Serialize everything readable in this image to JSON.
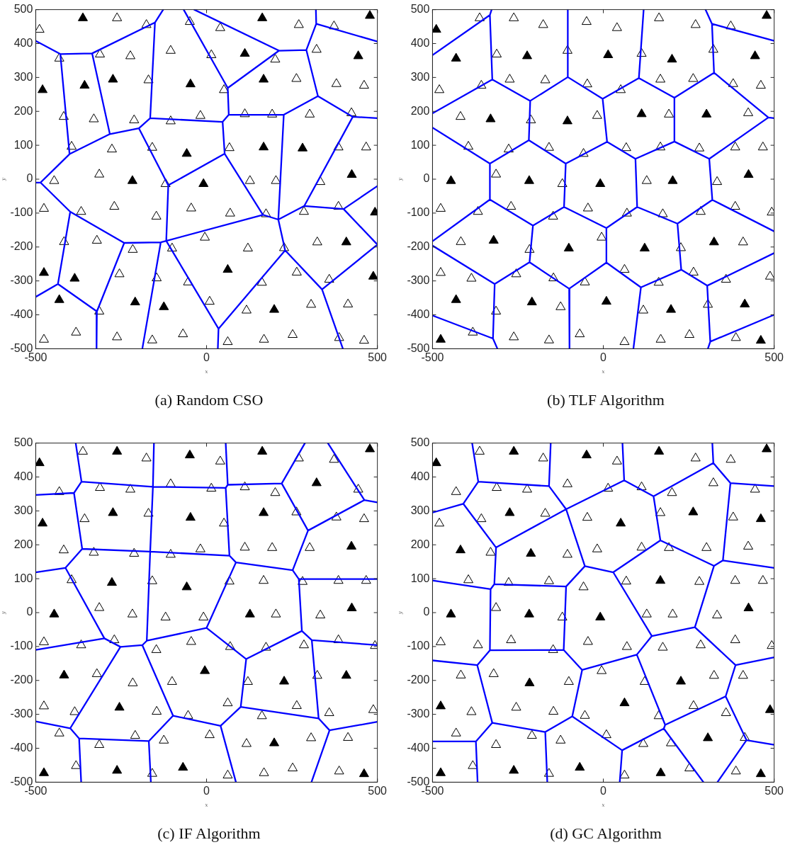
{
  "chart_data": [
    {
      "type": "scatter",
      "title": "(a) Random CSO",
      "xlabel": "x",
      "ylabel": "y",
      "xlim": [
        -500,
        500
      ],
      "ylim": [
        -500,
        500
      ],
      "xticks": [
        -500,
        0,
        500
      ],
      "yticks": [
        -500,
        -400,
        -300,
        -200,
        -100,
        0,
        100,
        200,
        300,
        400,
        500
      ],
      "marker": "triangle",
      "series": [
        {
          "type": "scatter",
          "color": "#ffffff",
          "x": [
            -262,
            -489,
            -176,
            -49,
            40,
            270,
            373,
            -431,
            -312,
            -223,
            -105,
            14,
            201,
            322,
            -170,
            51,
            263,
            380,
            461,
            -418,
            -330,
            -212,
            -105,
            -18,
            112,
            192,
            302,
            424,
            -395,
            -277,
            -159,
            67,
            386,
            467,
            -446,
            -314,
            -120,
            127,
            203,
            333,
            -476,
            -367,
            -270,
            -147,
            -45,
            69,
            174,
            285,
            386,
            -417,
            -321,
            -216,
            -101,
            -5,
            121,
            227,
            324,
            -255,
            -146,
            -54,
            162,
            264,
            359,
            -314,
            9,
            117,
            306,
            414,
            -476,
            -382,
            -262,
            -159,
            -69,
            62,
            168,
            252,
            388,
            461
          ],
          "values": [
            475,
            441,
            455,
            464,
            446,
            455,
            451,
            356,
            368,
            363,
            379,
            366,
            353,
            382,
            292,
            263,
            296,
            281,
            276,
            184,
            177,
            174,
            171,
            187,
            192,
            191,
            191,
            195,
            96,
            88,
            93,
            92,
            94,
            94,
            -5,
            14,
            -14,
            -5,
            -5,
            -8,
            -87,
            -96,
            -81,
            -110,
            -86,
            -101,
            -103,
            -96,
            -81,
            -185,
            -181,
            -208,
            -204,
            -172,
            -204,
            -203,
            -186,
            -280,
            -292,
            -304,
            -305,
            -275,
            -296,
            -390,
            -361,
            -387,
            -370,
            -369,
            -473,
            -452,
            -466,
            -475,
            -457,
            -480,
            -473,
            -459,
            -468,
            -476
          ]
        },
        {
          "type": "scatter",
          "color": "#000000",
          "x": [
            -362,
            163,
            478,
            112,
            444,
            -480,
            -357,
            -274,
            -47,
            167,
            -58,
            167,
            281,
            -217,
            -9,
            425,
            493,
            409,
            -476,
            -386,
            62,
            488,
            -431,
            -209,
            -125,
            198
          ],
          "values": [
            475,
            475,
            482,
            370,
            363,
            263,
            276,
            294,
            280,
            294,
            75,
            94,
            91,
            -5,
            -14,
            13,
            -98,
            -186,
            -276,
            -293,
            -267,
            -287,
            -356,
            -363,
            -377,
            -385
          ]
        },
        {
          "type": "line",
          "color": "#0000ff",
          "marker": "none",
          "x": [
            -500,
            -428,
            -335,
            -151,
            -127,
            null,
            -428,
            -401,
            null,
            -335,
            -283,
            null,
            -401,
            -283,
            -198,
            -165,
            47,
            65,
            226,
            326,
            428,
            500,
            null,
            -151,
            -165,
            null,
            -67,
            62,
            65,
            null,
            -36,
            212,
            292,
            321,
            320,
            null,
            321,
            500,
            null,
            212,
            62,
            null,
            292,
            326,
            null,
            -500,
            -486,
            -401,
            null,
            -486,
            -399,
            -241,
            -134,
            -118,
            165,
            210,
            286,
            401,
            500,
            null,
            226,
            210,
            null,
            -198,
            -112,
            53,
            165,
            null,
            -112,
            -118,
            null,
            53,
            47,
            null,
            428,
            286,
            null,
            401,
            500,
            null,
            210,
            230,
            338,
            399,
            null,
            230,
            35,
            33,
            null,
            338,
            500,
            null,
            -118,
            35,
            null,
            -134,
            -188,
            null,
            -241,
            -321,
            -322,
            null,
            -399,
            -435,
            -500,
            null,
            -435,
            -321
          ],
          "values": [
            408,
            369,
            371,
            462,
            500,
            null,
            369,
            74,
            null,
            371,
            133,
            null,
            74,
            133,
            150,
            180,
            169,
            190,
            190,
            245,
            184,
            180,
            null,
            462,
            180,
            null,
            500,
            269,
            190,
            null,
            500,
            379,
            381,
            458,
            500,
            null,
            458,
            406,
            null,
            379,
            269,
            null,
            381,
            245,
            null,
            -10,
            -10,
            74,
            null,
            -10,
            -96,
            -188,
            -186,
            -182,
            -105,
            -119,
            -79,
            -88,
            -20,
            null,
            190,
            -119,
            null,
            150,
            -18,
            75,
            -105,
            null,
            -18,
            -182,
            null,
            75,
            169,
            null,
            184,
            -79,
            null,
            -88,
            -193,
            null,
            -119,
            -210,
            -325,
            -500,
            null,
            -210,
            -441,
            -500,
            null,
            -325,
            -193,
            null,
            -182,
            -441,
            null,
            -186,
            -500,
            null,
            -188,
            -390,
            -500,
            null,
            -96,
            -309,
            -347,
            null,
            -309,
            -390
          ]
        }
      ]
    },
    {
      "type": "scatter",
      "title": "(b) TLF Algorithm",
      "xlabel": "x",
      "ylabel": "y",
      "xlim": [
        -500,
        500
      ],
      "ylim": [
        -500,
        500
      ],
      "xticks": [
        -500,
        0,
        500
      ],
      "yticks": [
        -500,
        -400,
        -300,
        -200,
        -100,
        0,
        100,
        200,
        300,
        400,
        500
      ],
      "marker": "triangle",
      "series": [
        {
          "type": "scatter",
          "color": "#ffffff",
          "x": [
            -362,
            -262,
            -176,
            -49,
            40,
            163,
            270,
            373,
            -312,
            -105,
            112,
            322,
            -480,
            -357,
            -274,
            -170,
            -47,
            51,
            167,
            263,
            380,
            461,
            -418,
            -212,
            -18,
            192,
            424,
            -395,
            -277,
            -159,
            -58,
            67,
            167,
            281,
            386,
            467,
            -314,
            -120,
            127,
            333,
            -476,
            -367,
            -270,
            -147,
            -45,
            69,
            174,
            285,
            386,
            493,
            -417,
            -216,
            -5,
            227,
            409,
            -476,
            -386,
            -255,
            -146,
            -54,
            62,
            162,
            264,
            359,
            488,
            -314,
            -125,
            117,
            306,
            -382,
            -262,
            -159,
            -69,
            62,
            168,
            252,
            388
          ],
          "values": [
            475,
            475,
            455,
            464,
            446,
            475,
            455,
            451,
            368,
            379,
            370,
            382,
            263,
            276,
            294,
            292,
            280,
            263,
            294,
            296,
            281,
            276,
            184,
            174,
            187,
            191,
            195,
            96,
            88,
            93,
            75,
            92,
            94,
            91,
            94,
            94,
            14,
            -14,
            -5,
            -8,
            -87,
            -96,
            -81,
            -110,
            -86,
            -101,
            -103,
            -96,
            -81,
            -98,
            -185,
            -208,
            -172,
            -203,
            -186,
            -276,
            -293,
            -280,
            -292,
            -304,
            -267,
            -305,
            -275,
            -296,
            -287,
            -390,
            -377,
            -387,
            -370,
            -452,
            -466,
            -475,
            -457,
            -480,
            -473,
            -459,
            -468
          ]
        },
        {
          "type": "scatter",
          "color": "#000000",
          "x": [
            -489,
            478,
            -431,
            -223,
            14,
            201,
            444,
            -330,
            -105,
            112,
            302,
            -446,
            -217,
            -9,
            203,
            425,
            -321,
            -101,
            121,
            324,
            -431,
            -209,
            9,
            198,
            414,
            -476,
            461
          ],
          "values": [
            441,
            482,
            356,
            363,
            366,
            353,
            363,
            177,
            171,
            192,
            191,
            -5,
            -5,
            -14,
            -5,
            13,
            -181,
            -204,
            -204,
            -186,
            -356,
            -363,
            -361,
            -385,
            -369,
            -473,
            -476
          ]
        },
        {
          "type": "line",
          "color": "#0000ff",
          "marker": "none",
          "x": [
            -500,
            -332,
            -327,
            null,
            -332,
            -325,
            null,
            -500,
            -325,
            -214,
            -104,
            -2,
            104,
            208,
            324,
            483,
            500,
            null,
            -104,
            -104,
            null,
            104,
            118,
            null,
            324,
            318,
            299,
            null,
            318,
            500,
            null,
            -214,
            -218,
            null,
            -2,
            11,
            null,
            208,
            208,
            null,
            -500,
            -332,
            -218,
            -110,
            11,
            94,
            208,
            310,
            483,
            null,
            -332,
            -332,
            null,
            -110,
            -115,
            null,
            94,
            99,
            null,
            310,
            319,
            null,
            -500,
            -332,
            -206,
            -115,
            9,
            99,
            217,
            319,
            500,
            null,
            -500,
            -318,
            -216,
            -100,
            9,
            110,
            228,
            304,
            500,
            null,
            -206,
            -216,
            null,
            9,
            9,
            null,
            217,
            228,
            null,
            -318,
            -323,
            -310,
            null,
            -500,
            -323,
            null,
            -100,
            -99,
            null,
            110,
            88,
            null,
            304,
            313,
            306,
            null,
            313,
            500
          ],
          "values": [
            366,
            484,
            500,
            null,
            484,
            294,
            null,
            194,
            294,
            231,
            301,
            237,
            298,
            240,
            314,
            182,
            180,
            null,
            301,
            500,
            null,
            298,
            500,
            null,
            314,
            458,
            500,
            null,
            458,
            408,
            null,
            231,
            115,
            null,
            237,
            110,
            null,
            240,
            111,
            null,
            152,
            46,
            115,
            46,
            110,
            60,
            111,
            60,
            182,
            null,
            46,
            -60,
            null,
            46,
            -82,
            null,
            60,
            -82,
            null,
            60,
            -61,
            null,
            -183,
            -60,
            -137,
            -82,
            -144,
            -82,
            -131,
            -61,
            -154,
            null,
            -196,
            -309,
            -245,
            -323,
            -246,
            -319,
            -267,
            -314,
            -218,
            null,
            -137,
            -245,
            null,
            -144,
            -246,
            null,
            -131,
            -267,
            null,
            -309,
            -470,
            -500,
            null,
            -402,
            -470,
            null,
            -323,
            -500,
            null,
            -319,
            -500,
            null,
            -314,
            -479,
            -500,
            null,
            -479,
            -400
          ]
        }
      ]
    },
    {
      "type": "scatter",
      "title": "(c) IF Algorithm",
      "xlabel": "x",
      "ylabel": "y",
      "xlim": [
        -500,
        500
      ],
      "ylim": [
        -500,
        500
      ],
      "xticks": [
        -500,
        0,
        500
      ],
      "yticks": [
        -500,
        -400,
        -300,
        -200,
        -100,
        0,
        100,
        200,
        300,
        400,
        500
      ],
      "marker": "triangle",
      "series": [
        {
          "type": "scatter",
          "color": "#ffffff",
          "x": [
            -362,
            -176,
            40,
            270,
            373,
            -431,
            -312,
            -223,
            -105,
            14,
            112,
            201,
            444,
            -357,
            -170,
            51,
            263,
            380,
            461,
            -418,
            -330,
            -212,
            -105,
            -18,
            112,
            192,
            302,
            -395,
            -159,
            67,
            167,
            281,
            386,
            467,
            -314,
            -217,
            -120,
            -9,
            203,
            333,
            -476,
            -367,
            -270,
            -147,
            -45,
            69,
            174,
            285,
            386,
            493,
            -321,
            -216,
            -101,
            121,
            324,
            -476,
            -386,
            -146,
            -54,
            62,
            162,
            264,
            359,
            488,
            -431,
            -314,
            -209,
            -125,
            9,
            117,
            306,
            414,
            -382,
            -159,
            62,
            168,
            252,
            388
          ],
          "values": [
            475,
            455,
            446,
            455,
            451,
            356,
            368,
            363,
            379,
            366,
            370,
            353,
            363,
            276,
            292,
            263,
            296,
            281,
            276,
            184,
            177,
            174,
            171,
            187,
            192,
            191,
            191,
            96,
            93,
            92,
            94,
            91,
            94,
            94,
            14,
            -5,
            -14,
            -14,
            -5,
            -8,
            -87,
            -96,
            -81,
            -110,
            -86,
            -101,
            -103,
            -96,
            -81,
            -98,
            -181,
            -208,
            -204,
            -204,
            -186,
            -276,
            -293,
            -292,
            -304,
            -267,
            -305,
            -275,
            -296,
            -287,
            -356,
            -390,
            -363,
            -377,
            -361,
            -387,
            -370,
            -369,
            -452,
            -475,
            -480,
            -473,
            -459,
            -468
          ]
        },
        {
          "type": "scatter",
          "color": "#000000",
          "x": [
            -262,
            -489,
            -49,
            163,
            478,
            322,
            -480,
            -274,
            -47,
            167,
            424,
            -277,
            -58,
            -446,
            127,
            425,
            -417,
            -5,
            227,
            409,
            -255,
            198,
            -476,
            -262,
            -69,
            461
          ],
          "values": [
            475,
            441,
            464,
            475,
            482,
            382,
            263,
            294,
            280,
            294,
            195,
            88,
            75,
            -5,
            -5,
            13,
            -185,
            -172,
            -203,
            -186,
            -280,
            -385,
            -473,
            -466,
            -457,
            -476
          ]
        },
        {
          "type": "line",
          "color": "#0000ff",
          "marker": "none",
          "x": [
            -500,
            -388,
            -366,
            -157,
            56,
            62,
            220,
            297,
            462,
            500,
            null,
            -383,
            -366,
            null,
            -154,
            -157,
            null,
            56,
            62,
            null,
            288,
            220,
            null,
            355,
            462,
            null,
            -388,
            -364,
            null,
            -157,
            -165,
            null,
            56,
            67,
            null,
            297,
            252,
            null,
            -500,
            -413,
            -364,
            -165,
            67,
            86,
            252,
            270,
            500,
            null,
            -413,
            -299,
            -252,
            null,
            -500,
            -299,
            null,
            -252,
            -188,
            -175,
            0,
            116,
            279,
            308,
            500,
            null,
            -165,
            -175,
            null,
            86,
            0,
            null,
            270,
            279,
            null,
            -252,
            -399,
            null,
            -188,
            -98,
            null,
            116,
            100,
            null,
            308,
            328,
            null,
            -500,
            -399,
            -373,
            -169,
            -98,
            41,
            100,
            328,
            360,
            500,
            null,
            -373,
            -367,
            null,
            -169,
            -163,
            null,
            41,
            86,
            null,
            360,
            307
          ],
          "values": [
            347,
            353,
            386,
            371,
            368,
            377,
            381,
            242,
            332,
            325,
            null,
            500,
            386,
            null,
            500,
            371,
            null,
            500,
            377,
            null,
            500,
            381,
            null,
            500,
            332,
            null,
            353,
            188,
            null,
            371,
            180,
            null,
            368,
            168,
            null,
            242,
            125,
            null,
            119,
            132,
            188,
            180,
            168,
            148,
            125,
            99,
            99,
            null,
            132,
            -76,
            -101,
            null,
            -110,
            -76,
            null,
            -101,
            -96,
            -83,
            -45,
            -137,
            -54,
            -81,
            -96,
            null,
            180,
            -83,
            null,
            148,
            -45,
            null,
            99,
            -54,
            null,
            -101,
            -341,
            null,
            -96,
            -304,
            null,
            -137,
            -278,
            null,
            -81,
            -312,
            null,
            -321,
            -341,
            -371,
            -379,
            -304,
            -334,
            -278,
            -312,
            -347,
            -322,
            null,
            -371,
            -500,
            null,
            -379,
            -500,
            null,
            -334,
            -500,
            null,
            -347,
            -500
          ]
        }
      ]
    },
    {
      "type": "scatter",
      "title": "(d) GC Algorithm",
      "xlabel": "x",
      "ylabel": "y",
      "xlim": [
        -500,
        500
      ],
      "ylim": [
        -500,
        500
      ],
      "xticks": [
        -500,
        0,
        500
      ],
      "yticks": [
        -500,
        -400,
        -300,
        -200,
        -100,
        0,
        100,
        200,
        300,
        400,
        500
      ],
      "marker": "triangle",
      "series": [
        {
          "type": "scatter",
          "color": "#ffffff",
          "x": [
            -362,
            -176,
            40,
            270,
            373,
            -431,
            -312,
            -223,
            -105,
            14,
            112,
            201,
            322,
            444,
            -480,
            -357,
            -170,
            -47,
            167,
            380,
            -330,
            -105,
            -18,
            112,
            192,
            302,
            424,
            -395,
            -277,
            -159,
            -58,
            67,
            281,
            386,
            467,
            -314,
            -120,
            127,
            203,
            333,
            -476,
            -367,
            -270,
            -147,
            -45,
            69,
            174,
            285,
            386,
            493,
            -417,
            -321,
            -101,
            -5,
            121,
            324,
            409,
            -386,
            -255,
            -146,
            -54,
            162,
            264,
            359,
            -431,
            -314,
            -209,
            -125,
            9,
            117,
            198,
            414,
            -382,
            -159,
            62,
            252,
            388
          ],
          "values": [
            475,
            455,
            446,
            455,
            451,
            356,
            368,
            363,
            379,
            366,
            370,
            353,
            382,
            363,
            263,
            276,
            292,
            280,
            294,
            281,
            177,
            171,
            187,
            192,
            191,
            191,
            195,
            96,
            88,
            93,
            75,
            92,
            91,
            94,
            94,
            14,
            -14,
            -5,
            -5,
            -8,
            -87,
            -96,
            -81,
            -110,
            -86,
            -101,
            -103,
            -96,
            -81,
            -98,
            -185,
            -181,
            -204,
            -172,
            -204,
            -186,
            -186,
            -293,
            -280,
            -292,
            -304,
            -305,
            -275,
            -296,
            -356,
            -390,
            -363,
            -377,
            -361,
            -387,
            -385,
            -369,
            -452,
            -475,
            -480,
            -459,
            -468
          ]
        },
        {
          "type": "scatter",
          "color": "#000000",
          "x": [
            -262,
            -489,
            -49,
            163,
            478,
            -274,
            51,
            263,
            461,
            -418,
            -212,
            167,
            -446,
            -217,
            -9,
            425,
            -216,
            227,
            -476,
            62,
            488,
            306,
            -476,
            -262,
            -69,
            168,
            461
          ],
          "values": [
            475,
            441,
            464,
            475,
            482,
            294,
            263,
            296,
            276,
            184,
            174,
            94,
            -5,
            -5,
            -14,
            13,
            -208,
            -203,
            -276,
            -267,
            -287,
            -370,
            -473,
            -466,
            -457,
            -473,
            -476
          ]
        },
        {
          "type": "line",
          "color": "#0000ff",
          "marker": "none",
          "x": [
            -384,
            -366,
            -410,
            -500,
            null,
            -366,
            -159,
            -154,
            null,
            -159,
            -109,
            null,
            -314,
            -109,
            61,
            null,
            -410,
            -314,
            null,
            61,
            56,
            null,
            61,
            147,
            322,
            319,
            null,
            322,
            372,
            500,
            null,
            372,
            350,
            500,
            null,
            147,
            167,
            29,
            -54,
            -109,
            null,
            167,
            324,
            350,
            null,
            324,
            268,
            null,
            -314,
            -319,
            -330,
            null,
            -500,
            -330,
            null,
            -319,
            -109,
            -54,
            null,
            -330,
            -332,
            null,
            -109,
            -116,
            null,
            29,
            142,
            268,
            387,
            500,
            null,
            142,
            98,
            null,
            -500,
            -369,
            -332,
            -116,
            -62,
            98,
            null,
            98,
            181,
            null,
            387,
            358,
            181,
            null,
            358,
            419,
            500,
            null,
            419,
            334,
            null,
            181,
            177,
            55,
            null,
            177,
            293,
            null,
            -369,
            -325,
            -170,
            -91,
            -62,
            null,
            -91,
            55,
            48,
            null,
            -325,
            -373,
            -500,
            null,
            -373,
            -368,
            null,
            -170,
            -164
          ],
          "values": [
            500,
            386,
            321,
            295,
            null,
            386,
            373,
            500,
            null,
            373,
            305,
            null,
            192,
            305,
            390,
            null,
            321,
            192,
            null,
            390,
            500,
            null,
            390,
            343,
            441,
            500,
            null,
            441,
            382,
            373,
            null,
            382,
            154,
            132,
            null,
            343,
            213,
            119,
            137,
            305,
            null,
            213,
            138,
            154,
            null,
            138,
            -43,
            null,
            192,
            84,
            69,
            null,
            95,
            69,
            null,
            84,
            77,
            137,
            null,
            69,
            -111,
            null,
            77,
            -110,
            null,
            119,
            -69,
            -43,
            -155,
            -132,
            null,
            -69,
            -124,
            null,
            -141,
            -155,
            -111,
            -110,
            -169,
            -124,
            null,
            -124,
            -331,
            null,
            -155,
            -247,
            -331,
            null,
            -247,
            -376,
            -390,
            null,
            -376,
            -500,
            null,
            -331,
            -342,
            -406,
            null,
            -342,
            -500,
            null,
            -155,
            -325,
            -352,
            -306,
            -169,
            null,
            -306,
            -406,
            -500,
            null,
            -325,
            -380,
            -380,
            null,
            -380,
            -500,
            null,
            -352,
            -500
          ]
        }
      ]
    }
  ]
}
